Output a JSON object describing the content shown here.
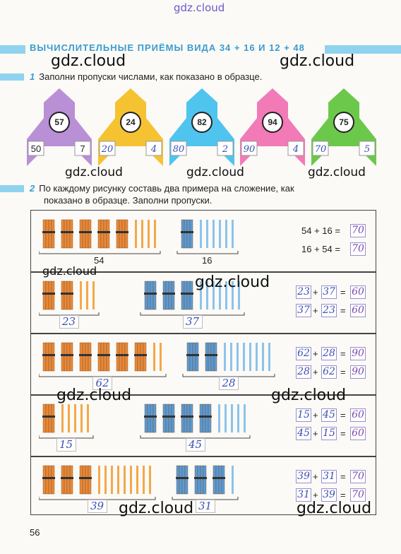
{
  "watermark_top": "gdz.cloud",
  "watermark": "gdz.cloud",
  "title": "ВЫЧИСЛИТЕЛЬНЫЕ ПРИЁМЫ ВИДА 34 + 16 И 12 + 48",
  "task1": {
    "num": "1",
    "text": "Заполни пропуски числами, как показано в образце."
  },
  "task2": {
    "num": "2",
    "line1": "По каждому рисунку составь два примера на сложение, как",
    "line2": "показано в образце. Заполни пропуски."
  },
  "rockets": [
    {
      "color": "#b98fd6",
      "top": "57",
      "left": "50",
      "right": "7"
    },
    {
      "color": "#f5c232",
      "top": "24",
      "left": "20",
      "right": "4"
    },
    {
      "color": "#4fc4ee",
      "top": "82",
      "left": "80",
      "right": "2"
    },
    {
      "color": "#f27ab6",
      "top": "94",
      "left": "90",
      "right": "4"
    },
    {
      "color": "#6cc84a",
      "top": "75",
      "left": "70",
      "right": "5"
    }
  ],
  "rows": [
    {
      "tens_a": 5,
      "ones_a": 4,
      "tens_b": 1,
      "ones_b": 6,
      "label_a": "54",
      "label_b": "16",
      "eq1": [
        "54",
        "16",
        "70"
      ],
      "eq2": [
        "16",
        "54",
        "70"
      ],
      "sample": true
    },
    {
      "tens_a": 2,
      "ones_a": 3,
      "tens_b": 3,
      "ones_b": 7,
      "label_a": "23",
      "label_b": "37",
      "eq1": [
        "23",
        "37",
        "60"
      ],
      "eq2": [
        "37",
        "23",
        "60"
      ],
      "sample": false
    },
    {
      "tens_a": 6,
      "ones_a": 2,
      "tens_b": 2,
      "ones_b": 8,
      "label_a": "62",
      "label_b": "28",
      "eq1": [
        "62",
        "28",
        "90"
      ],
      "eq2": [
        "28",
        "62",
        "90"
      ],
      "sample": false
    },
    {
      "tens_a": 1,
      "ones_a": 5,
      "tens_b": 4,
      "ones_b": 5,
      "label_a": "15",
      "label_b": "45",
      "eq1": [
        "15",
        "45",
        "60"
      ],
      "eq2": [
        "45",
        "15",
        "60"
      ],
      "sample": false
    },
    {
      "tens_a": 3,
      "ones_a": 9,
      "tens_b": 3,
      "ones_b": 1,
      "label_a": "39",
      "label_b": "31",
      "eq1": [
        "39",
        "31",
        "70"
      ],
      "eq2": [
        "31",
        "39",
        "70"
      ],
      "sample": false
    }
  ],
  "plus": "+",
  "equals": "=",
  "page_number": "56",
  "colors": {
    "orange_bundle": "#e8893a",
    "orange_stick": "#f3a84a",
    "blue_bundle": "#5b9bd5",
    "blue_stick": "#8cc3ec",
    "heading": "#3a9bd1"
  }
}
